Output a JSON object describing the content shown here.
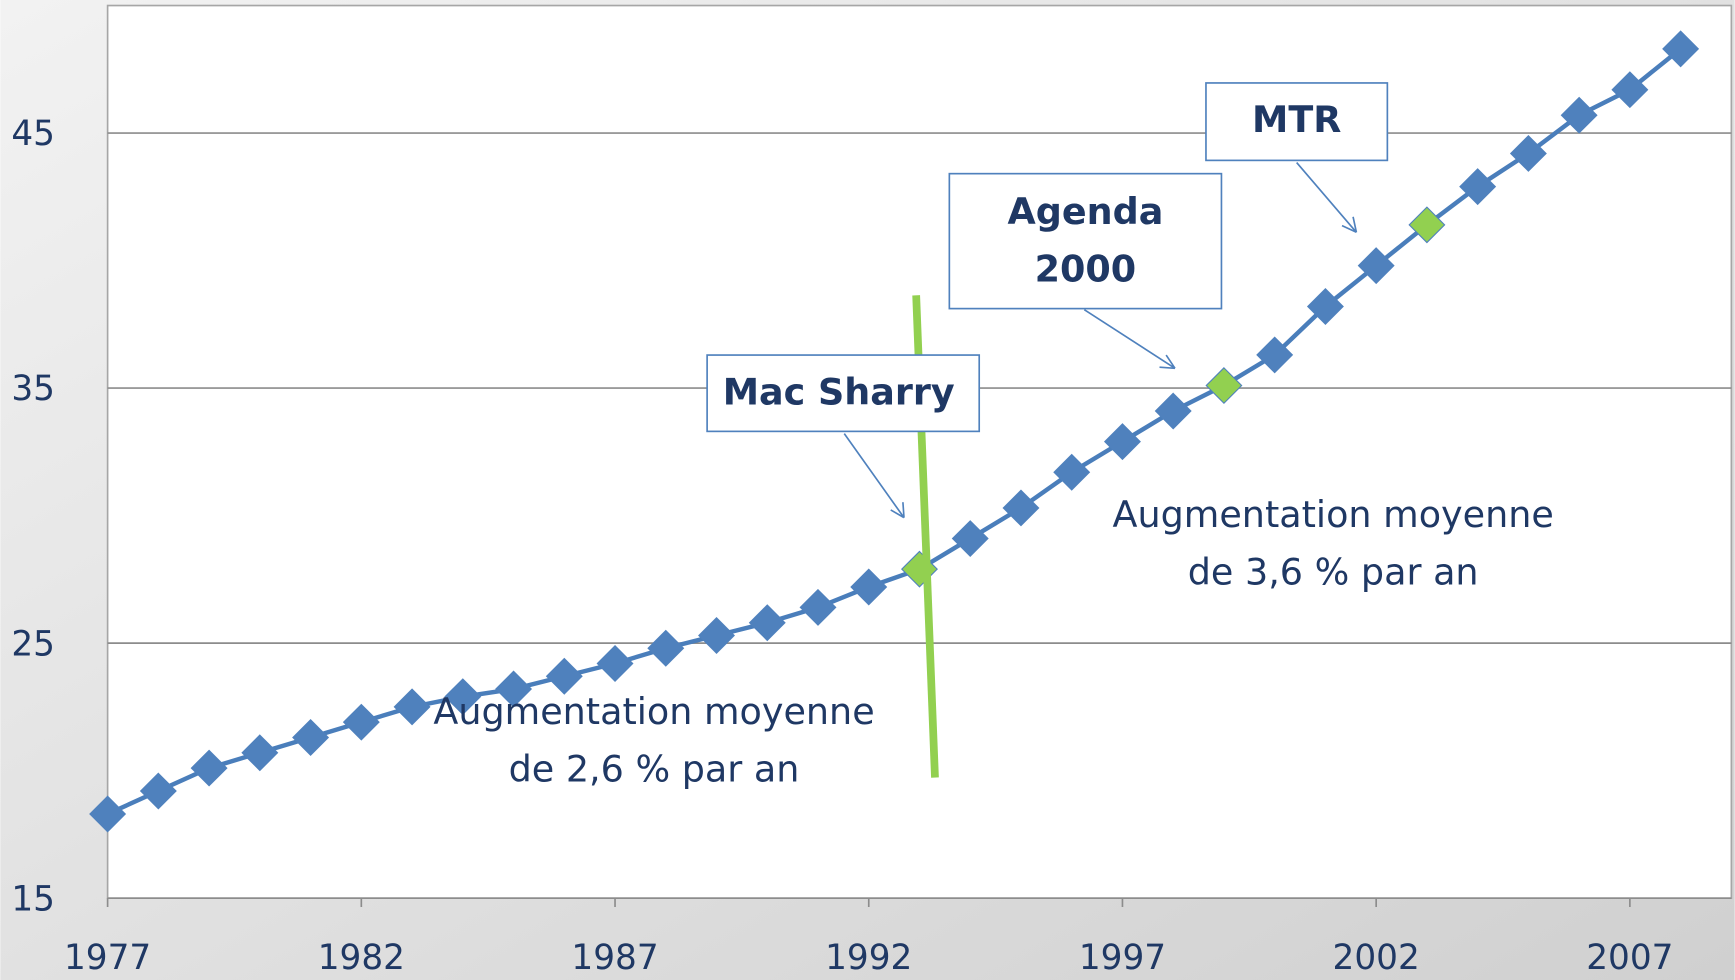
{
  "chart_data": {
    "type": "line",
    "x": [
      1977,
      1978,
      1979,
      1980,
      1981,
      1982,
      1983,
      1984,
      1985,
      1986,
      1987,
      1988,
      1989,
      1990,
      1991,
      1992,
      1993,
      1994,
      1995,
      1996,
      1997,
      1998,
      1999,
      2000,
      2001,
      2002,
      2003,
      2004,
      2005,
      2006,
      2007,
      2008
    ],
    "series": [
      {
        "color": "#4f81bd",
        "values": [
          18.3,
          19.2,
          20.1,
          20.7,
          21.3,
          21.9,
          22.5,
          22.9,
          23.2,
          23.7,
          24.2,
          24.8,
          25.3,
          25.8,
          26.4,
          27.2,
          27.9,
          29.1,
          30.3,
          31.7,
          32.9,
          34.1,
          35.1,
          36.3,
          38.2,
          39.8,
          41.4,
          42.9,
          44.2,
          45.7,
          46.7,
          48.3
        ],
        "marker_colors": [
          "#4f81bd",
          "#4f81bd",
          "#4f81bd",
          "#4f81bd",
          "#4f81bd",
          "#4f81bd",
          "#4f81bd",
          "#4f81bd",
          "#4f81bd",
          "#4f81bd",
          "#4f81bd",
          "#4f81bd",
          "#4f81bd",
          "#4f81bd",
          "#4f81bd",
          "#4f81bd",
          "#92d050",
          "#4f81bd",
          "#4f81bd",
          "#4f81bd",
          "#4f81bd",
          "#4f81bd",
          "#92d050",
          "#4f81bd",
          "#4f81bd",
          "#4f81bd",
          "#92d050",
          "#4f81bd",
          "#4f81bd",
          "#4f81bd",
          "#4f81bd",
          "#4f81bd"
        ]
      }
    ],
    "xlim": [
      1977,
      2009
    ],
    "xticks": [
      1977,
      1982,
      1987,
      1992,
      1997,
      2002,
      2007
    ],
    "ylim": [
      15,
      50
    ],
    "yticks": [
      15,
      25,
      35,
      45
    ],
    "grid": true,
    "annotations": {
      "mtr": [
        "MTR"
      ],
      "agenda": [
        "Agenda",
        "2000"
      ],
      "mac_sharry": [
        "Mac Sharry"
      ],
      "rate_after": [
        "Augmentation moyenne",
        "de 3,6 % par an"
      ],
      "rate_before": [
        "Augmentation moyenne",
        "de 2,6 % par an"
      ]
    }
  }
}
